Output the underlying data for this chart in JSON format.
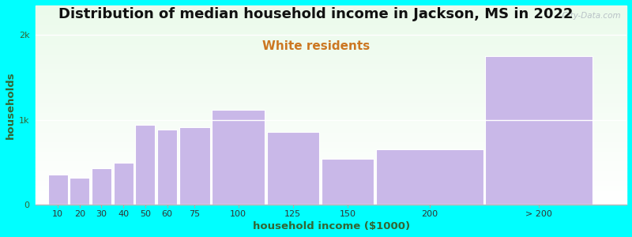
{
  "title": "Distribution of median household income in Jackson, MS in 2022",
  "subtitle": "White residents",
  "xlabel": "household income ($1000)",
  "ylabel": "households",
  "bar_labels": [
    "10",
    "20",
    "30",
    "40",
    "50",
    "60",
    "75",
    "100",
    "125",
    "150",
    "200",
    "> 200"
  ],
  "bar_values": [
    350,
    320,
    430,
    490,
    940,
    890,
    910,
    1120,
    860,
    540,
    650,
    1750
  ],
  "bar_lefts": [
    0,
    10,
    20,
    30,
    40,
    50,
    60,
    75,
    100,
    125,
    150,
    200
  ],
  "bar_widths": [
    10,
    10,
    10,
    10,
    10,
    10,
    15,
    25,
    25,
    25,
    50,
    50
  ],
  "bar_color": "#c9b8e8",
  "bar_edgecolor": "#ffffff",
  "background_color": "#00ffff",
  "title_fontsize": 13,
  "subtitle_fontsize": 11,
  "subtitle_color": "#cc7722",
  "ylabel_color": "#336633",
  "xlabel_color": "#336633",
  "ylim": [
    0,
    2350
  ],
  "xlim": [
    -5,
    265
  ],
  "ytick_labels": [
    "0",
    "1k",
    "2k"
  ],
  "ytick_values": [
    0,
    1000,
    2000
  ],
  "watermark": "  City-Data.com"
}
